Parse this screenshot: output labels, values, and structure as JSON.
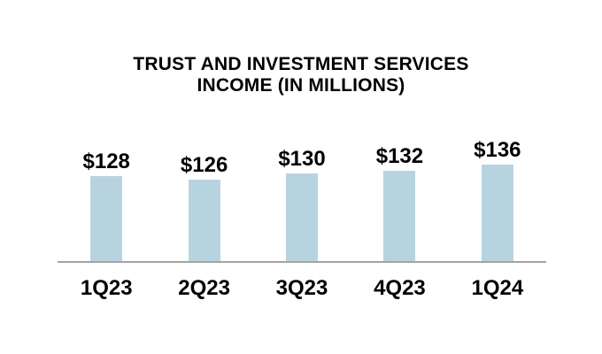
{
  "page": {
    "background_color": "#ffffff",
    "text_color": "#000000"
  },
  "chart_data": {
    "type": "bar",
    "title": "TRUST AND INVESTMENT SERVICES INCOME (IN MILLIONS)",
    "title_lines": [
      "TRUST AND INVESTMENT SERVICES",
      "INCOME (IN MILLIONS)"
    ],
    "categories": [
      "1Q23",
      "2Q23",
      "3Q23",
      "4Q23",
      "1Q24"
    ],
    "values": [
      128,
      126,
      130,
      132,
      136
    ],
    "data_labels": [
      "$128",
      "$126",
      "$130",
      "$132",
      "$136"
    ],
    "series_name": "Trust and investment services income",
    "unit": "USD millions",
    "bar_color": "#b8d3e0",
    "axis_line_color": "#a3a3a3",
    "text_color": "#000000",
    "ylim": [
      70,
      141
    ],
    "xlabel": "",
    "ylabel": "",
    "grid": false,
    "legend": false,
    "data_labels_position": "above-bars"
  }
}
